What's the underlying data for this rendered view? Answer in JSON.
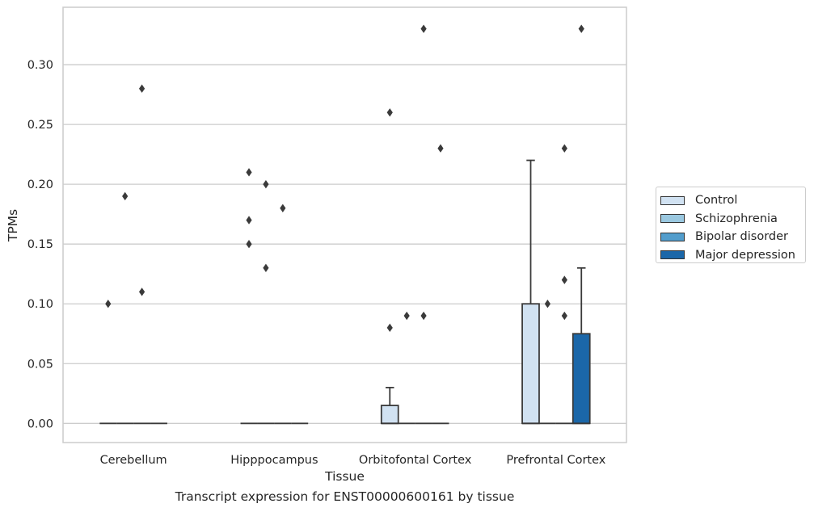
{
  "chart_data": {
    "type": "box",
    "xlabel": "Tissue",
    "ylabel": "TPMs",
    "caption": "Transcript expression for ENST00000600161 by tissue",
    "ylim": [
      -0.016,
      0.348
    ],
    "yticks": [
      0.0,
      0.05,
      0.1,
      0.15,
      0.2,
      0.25,
      0.3
    ],
    "ytick_labels": [
      "0.00",
      "0.05",
      "0.10",
      "0.15",
      "0.20",
      "0.25",
      "0.30"
    ],
    "grid": "horizontal",
    "legend_position": "right",
    "categories": [
      "Cerebellum",
      "Hipppocampus",
      "Orbitofontal Cortex",
      "Prefrontal Cortex"
    ],
    "series": [
      {
        "name": "Control",
        "color": "#d1e2f2"
      },
      {
        "name": "Schizophrenia",
        "color": "#9ac8e0"
      },
      {
        "name": "Bipolar disorder",
        "color": "#529dcc"
      },
      {
        "name": "Major depression",
        "color": "#1b67a9"
      }
    ],
    "boxes": [
      {
        "category": "Cerebellum",
        "series": "Control",
        "whisker_low": 0,
        "q1": 0,
        "median": 0,
        "q3": 0,
        "whisker_high": 0,
        "outliers": [
          0.1
        ]
      },
      {
        "category": "Cerebellum",
        "series": "Schizophrenia",
        "whisker_low": 0,
        "q1": 0,
        "median": 0,
        "q3": 0,
        "whisker_high": 0,
        "outliers": [
          0.19
        ]
      },
      {
        "category": "Cerebellum",
        "series": "Bipolar disorder",
        "whisker_low": 0,
        "q1": 0,
        "median": 0,
        "q3": 0,
        "whisker_high": 0,
        "outliers": [
          0.11,
          0.28
        ]
      },
      {
        "category": "Cerebellum",
        "series": "Major depression",
        "whisker_low": 0,
        "q1": 0,
        "median": 0,
        "q3": 0,
        "whisker_high": 0,
        "outliers": []
      },
      {
        "category": "Hipppocampus",
        "series": "Control",
        "whisker_low": 0,
        "q1": 0,
        "median": 0,
        "q3": 0,
        "whisker_high": 0,
        "outliers": [
          0.15,
          0.17,
          0.21
        ]
      },
      {
        "category": "Hipppocampus",
        "series": "Schizophrenia",
        "whisker_low": 0,
        "q1": 0,
        "median": 0,
        "q3": 0,
        "whisker_high": 0,
        "outliers": [
          0.13,
          0.2
        ]
      },
      {
        "category": "Hipppocampus",
        "series": "Bipolar disorder",
        "whisker_low": 0,
        "q1": 0,
        "median": 0,
        "q3": 0,
        "whisker_high": 0,
        "outliers": [
          0.18
        ]
      },
      {
        "category": "Hipppocampus",
        "series": "Major depression",
        "whisker_low": 0,
        "q1": 0,
        "median": 0,
        "q3": 0,
        "whisker_high": 0,
        "outliers": []
      },
      {
        "category": "Orbitofontal Cortex",
        "series": "Control",
        "whisker_low": 0,
        "q1": 0,
        "median": 0,
        "q3": 0.015,
        "whisker_high": 0.03,
        "outliers": [
          0.08,
          0.26
        ]
      },
      {
        "category": "Orbitofontal Cortex",
        "series": "Schizophrenia",
        "whisker_low": 0,
        "q1": 0,
        "median": 0,
        "q3": 0,
        "whisker_high": 0,
        "outliers": [
          0.09
        ]
      },
      {
        "category": "Orbitofontal Cortex",
        "series": "Bipolar disorder",
        "whisker_low": 0,
        "q1": 0,
        "median": 0,
        "q3": 0,
        "whisker_high": 0,
        "outliers": [
          0.09,
          0.33
        ]
      },
      {
        "category": "Orbitofontal Cortex",
        "series": "Major depression",
        "whisker_low": 0,
        "q1": 0,
        "median": 0,
        "q3": 0,
        "whisker_high": 0,
        "outliers": [
          0.23
        ]
      },
      {
        "category": "Prefrontal Cortex",
        "series": "Control",
        "whisker_low": 0,
        "q1": 0,
        "median": 0,
        "q3": 0.1,
        "whisker_high": 0.22,
        "outliers": []
      },
      {
        "category": "Prefrontal Cortex",
        "series": "Schizophrenia",
        "whisker_low": 0,
        "q1": 0,
        "median": 0,
        "q3": 0,
        "whisker_high": 0,
        "outliers": [
          0.1
        ]
      },
      {
        "category": "Prefrontal Cortex",
        "series": "Bipolar disorder",
        "whisker_low": 0,
        "q1": 0,
        "median": 0,
        "q3": 0,
        "whisker_high": 0,
        "outliers": [
          0.09,
          0.12,
          0.23
        ]
      },
      {
        "category": "Prefrontal Cortex",
        "series": "Major depression",
        "whisker_low": 0,
        "q1": 0,
        "median": 0,
        "q3": 0.075,
        "whisker_high": 0.13,
        "outliers": [
          0.33
        ]
      }
    ]
  }
}
